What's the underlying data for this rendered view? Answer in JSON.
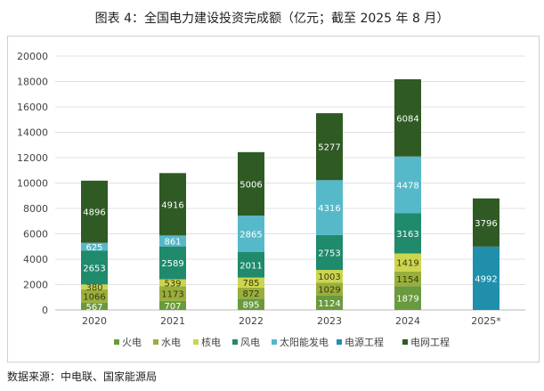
{
  "title": "图表 4：全国电力建设投资完成额（亿元；截至 2025 年 8 月）",
  "source": "数据来源：中电联、国家能源局",
  "chart_data": {
    "type": "bar",
    "stacked": true,
    "categories": [
      "2020",
      "2021",
      "2022",
      "2023",
      "2024",
      "2025*"
    ],
    "ylim": [
      0,
      20000
    ],
    "yticks": [
      0,
      2000,
      4000,
      6000,
      8000,
      10000,
      12000,
      14000,
      16000,
      18000,
      20000
    ],
    "grid": true,
    "legend_position": "bottom",
    "series": [
      {
        "name": "火电",
        "color": "#6a9a3e",
        "label_color": "#ffffff",
        "values": [
          567,
          707,
          895,
          1124,
          1879,
          null
        ]
      },
      {
        "name": "水电",
        "color": "#9aae3c",
        "label_color": "#3a3a10",
        "values": [
          1066,
          1173,
          872,
          1029,
          1154,
          null
        ]
      },
      {
        "name": "核电",
        "color": "#cbd54e",
        "label_color": "#3a3a10",
        "values": [
          380,
          539,
          785,
          1003,
          1419,
          null
        ]
      },
      {
        "name": "风电",
        "color": "#1f8a6c",
        "label_color": "#ffffff",
        "values": [
          2653,
          2589,
          2011,
          2753,
          3163,
          null
        ]
      },
      {
        "name": "太阳能发电",
        "color": "#56b9c9",
        "label_color": "#ffffff",
        "values": [
          625,
          861,
          2865,
          4316,
          4478,
          null
        ]
      },
      {
        "name": "电源工程",
        "color": "#1f8fab",
        "label_color": "#ffffff",
        "values": [
          null,
          null,
          null,
          null,
          null,
          4992
        ]
      },
      {
        "name": "电网工程",
        "color": "#2f5a24",
        "label_color": "#ffffff",
        "values": [
          4896,
          4916,
          5006,
          5277,
          6084,
          3796
        ]
      }
    ]
  }
}
